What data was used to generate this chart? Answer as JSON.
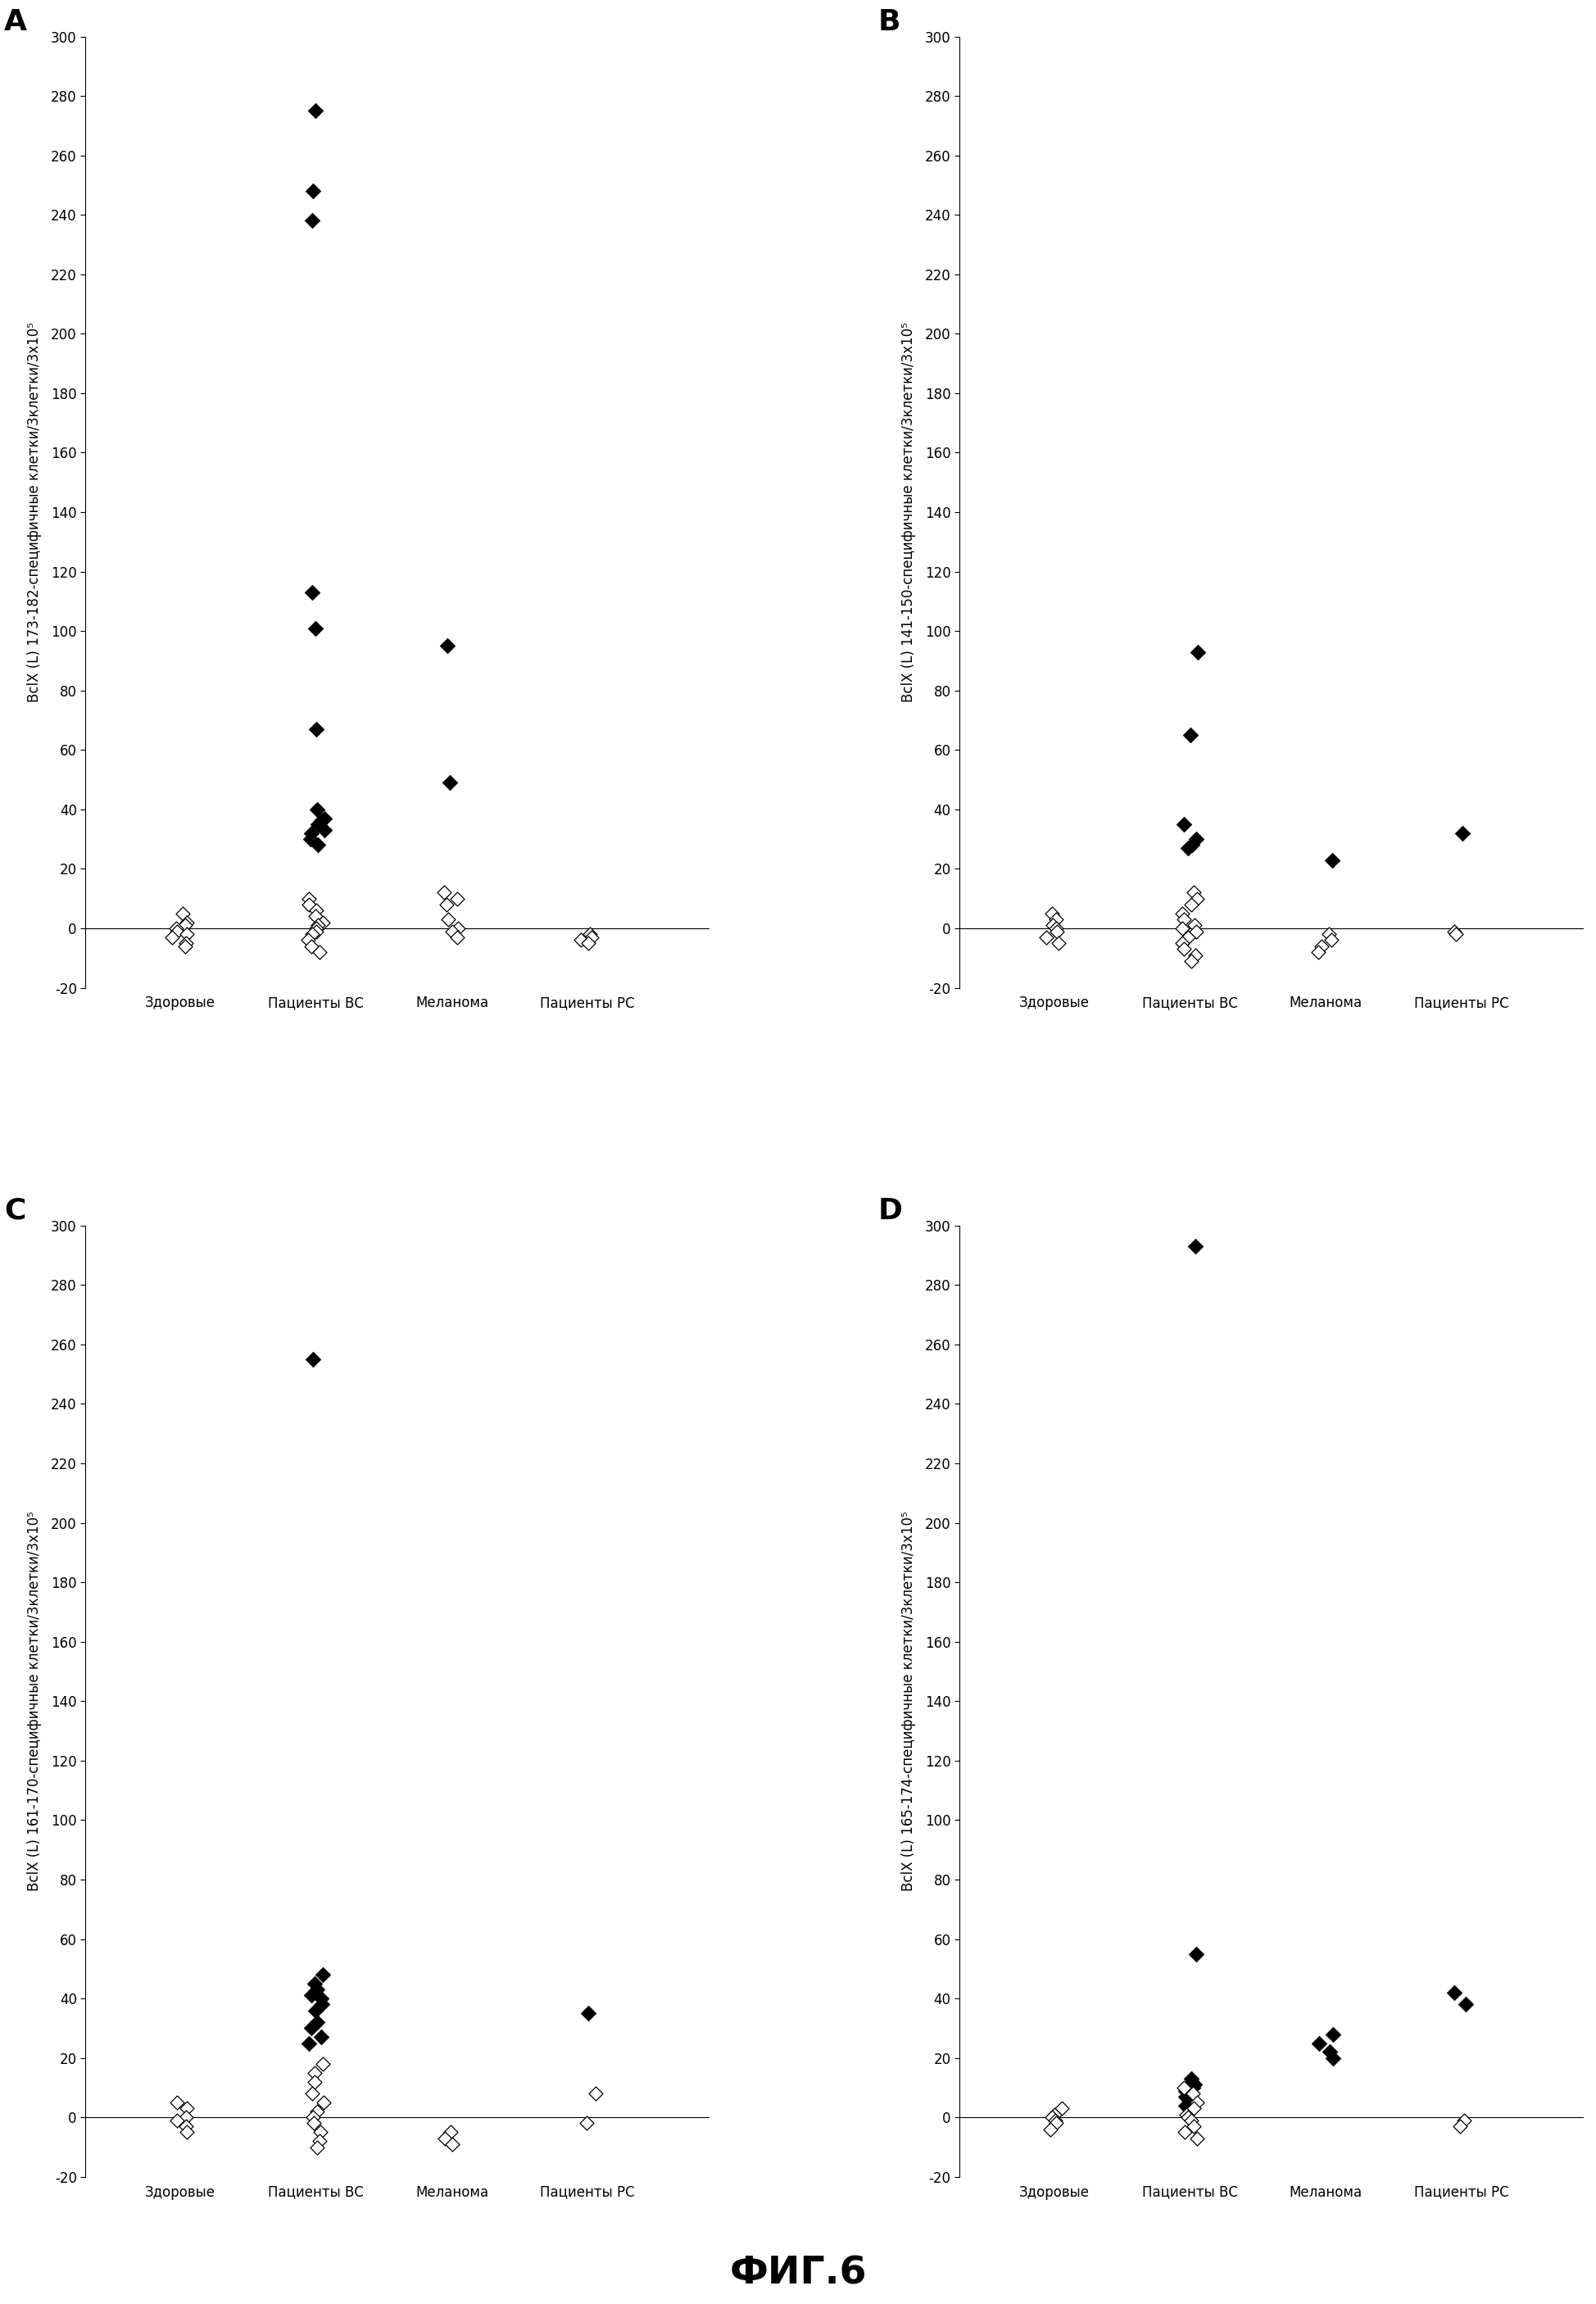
{
  "figure_title": "ФИГ.6",
  "background_color": "#ffffff",
  "panels": [
    {
      "label": "A",
      "ylabel": "BclX (L) 173-182-специфичные клетки/3х5 10⁵",
      "ylim": [
        -20,
        300
      ],
      "yticks": [
        -20,
        0,
        20,
        40,
        60,
        80,
        100,
        120,
        140,
        160,
        180,
        200,
        220,
        240,
        260,
        280,
        300
      ],
      "categories": [
        "Здоровые",
        "Пациенты ВС",
        "Меланома",
        "Пациенты РС"
      ],
      "filled_points": {
        "0": [],
        "1": [
          275,
          248,
          238,
          113,
          101,
          67,
          40,
          37,
          36,
          35,
          33,
          32,
          30,
          28
        ],
        "2": [
          95,
          49
        ],
        "3": []
      },
      "open_points": {
        "0": [
          5,
          2,
          1,
          0,
          -1,
          -2,
          -3,
          -5,
          -6
        ],
        "1": [
          10,
          8,
          6,
          4,
          2,
          1,
          0,
          -1,
          -2,
          -4,
          -6,
          -8
        ],
        "2": [
          12,
          10,
          8,
          3,
          0,
          -1,
          -3
        ],
        "3": [
          -2,
          -3,
          -4,
          -5
        ]
      }
    },
    {
      "label": "B",
      "ylabel": "BclX (L) 141-150-специфичные клетки/3х5 10⁵",
      "ylim": [
        -20,
        300
      ],
      "yticks": [
        -20,
        0,
        20,
        40,
        60,
        80,
        100,
        120,
        140,
        160,
        180,
        200,
        220,
        240,
        260,
        280,
        300
      ],
      "categories": [
        "Здоровые",
        "Пациенты ВС",
        "Меланома",
        "Пациенты РС"
      ],
      "filled_points": {
        "0": [],
        "1": [
          93,
          65,
          35,
          30,
          28,
          27
        ],
        "2": [
          23
        ],
        "3": [
          32
        ]
      },
      "open_points": {
        "0": [
          5,
          3,
          1,
          0,
          -1,
          -3,
          -5
        ],
        "1": [
          12,
          10,
          8,
          5,
          3,
          1,
          0,
          -1,
          -3,
          -5,
          -7,
          -9,
          -11
        ],
        "2": [
          -2,
          -4,
          -6,
          -8
        ],
        "3": [
          -1,
          -2
        ]
      }
    },
    {
      "label": "C",
      "ylabel": "BclX (L) 161-170-специфичные клетки/3х5 10⁵",
      "ylim": [
        -20,
        300
      ],
      "yticks": [
        -20,
        0,
        20,
        40,
        60,
        80,
        100,
        120,
        140,
        160,
        180,
        200,
        220,
        240,
        260,
        280,
        300
      ],
      "categories": [
        "Здоровые",
        "Пациенты ВС",
        "Меланома",
        "Пациенты РС"
      ],
      "filled_points": {
        "0": [],
        "1": [
          255,
          48,
          45,
          43,
          41,
          40,
          38,
          36,
          32,
          30,
          27,
          25
        ],
        "2": [],
        "3": [
          35
        ]
      },
      "open_points": {
        "0": [
          5,
          3,
          0,
          -1,
          -3,
          -5
        ],
        "1": [
          18,
          15,
          12,
          8,
          5,
          2,
          0,
          -2,
          -5,
          -8,
          -10
        ],
        "2": [
          -5,
          -7,
          -9
        ],
        "3": [
          8,
          -2
        ]
      }
    },
    {
      "label": "D",
      "ylabel": "BclX (L) 165-174-специфичные клетки/3х5 10⁵",
      "ylim": [
        -20,
        300
      ],
      "yticks": [
        -20,
        0,
        20,
        40,
        60,
        80,
        100,
        120,
        140,
        160,
        180,
        200,
        220,
        240,
        260,
        280,
        300
      ],
      "categories": [
        "Здоровые",
        "Пациенты ВС",
        "Меланома",
        "Пациенты РС"
      ],
      "filled_points": {
        "0": [],
        "1": [
          293,
          55,
          13,
          12,
          11,
          10,
          9,
          8,
          7,
          6,
          5,
          4
        ],
        "2": [
          28,
          25,
          22,
          20
        ],
        "3": [
          42,
          38
        ]
      },
      "open_points": {
        "0": [
          3,
          1,
          0,
          -1,
          -2,
          -4
        ],
        "1": [
          10,
          8,
          5,
          3,
          1,
          0,
          -1,
          -3,
          -5,
          -7
        ],
        "2": [],
        "3": [
          -1,
          -3
        ]
      }
    }
  ]
}
